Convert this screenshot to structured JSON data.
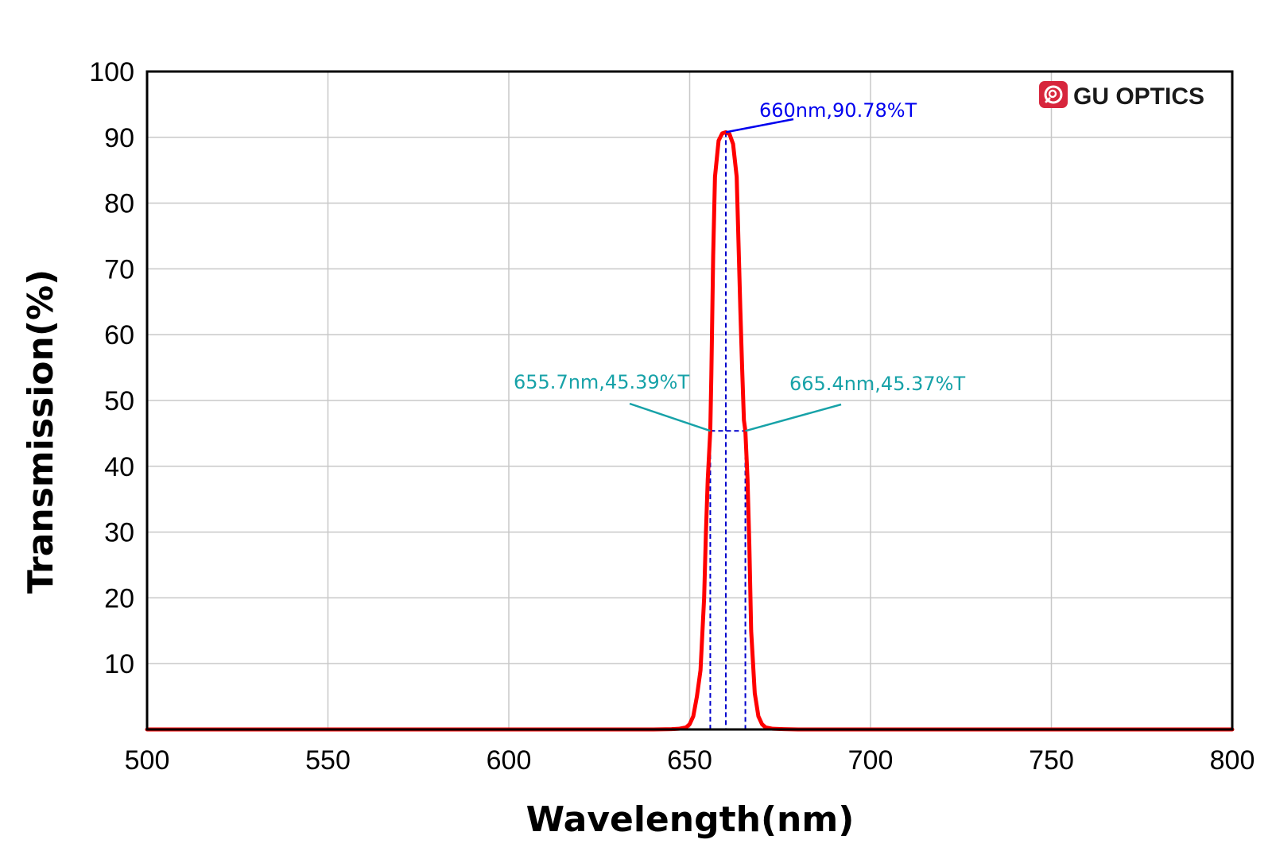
{
  "brand": {
    "name": "GU OPTICS",
    "logo_icon": "gu-optics-logo-icon",
    "logo_color": "#d7263d"
  },
  "chart_data": {
    "type": "line",
    "title": "",
    "xlabel": "Wavelength(nm)",
    "ylabel": "Transmission(%)",
    "xlim": [
      500,
      800
    ],
    "ylim": [
      0,
      100
    ],
    "x_ticks": [
      500,
      550,
      600,
      650,
      700,
      750,
      800
    ],
    "y_ticks": [
      10,
      20,
      30,
      40,
      50,
      60,
      70,
      80,
      90,
      100
    ],
    "grid": true,
    "colors": {
      "series": "#ff0000",
      "peak_annotation": "#0000ee",
      "fwhm_annotation": "#17a2a8",
      "guide_lines": "#0000cc",
      "grid": "#c8c8c8"
    },
    "series": [
      {
        "x": [
          500,
          600,
          640,
          645,
          647,
          649,
          650,
          651,
          652,
          653,
          654,
          654.5,
          655,
          655.7,
          656,
          656.5,
          657,
          658,
          659,
          660,
          661,
          662,
          663,
          663.5,
          664,
          664.5,
          665,
          665.4,
          666,
          666.5,
          667,
          668,
          669,
          670,
          671,
          673,
          676,
          680,
          700,
          750,
          800
        ],
        "y": [
          0,
          0,
          0,
          0.05,
          0.1,
          0.3,
          0.8,
          2,
          5,
          9,
          20,
          30,
          38,
          45.39,
          54,
          72,
          84,
          89.5,
          90.6,
          90.78,
          90.5,
          89,
          84,
          74,
          64,
          55,
          47,
          45.37,
          38,
          28,
          15,
          5.5,
          2,
          0.8,
          0.3,
          0.1,
          0.05,
          0,
          0,
          0,
          0
        ]
      }
    ],
    "annotations": [
      {
        "text": "660nm,90.78%T",
        "x": 660,
        "y": 90.78,
        "kind": "peak"
      },
      {
        "text": "655.7nm,45.39%T",
        "x": 655.7,
        "y": 45.39,
        "kind": "fwhm-left"
      },
      {
        "text": "665.4nm,45.37%T",
        "x": 665.4,
        "y": 45.37,
        "kind": "fwhm-right"
      }
    ]
  }
}
